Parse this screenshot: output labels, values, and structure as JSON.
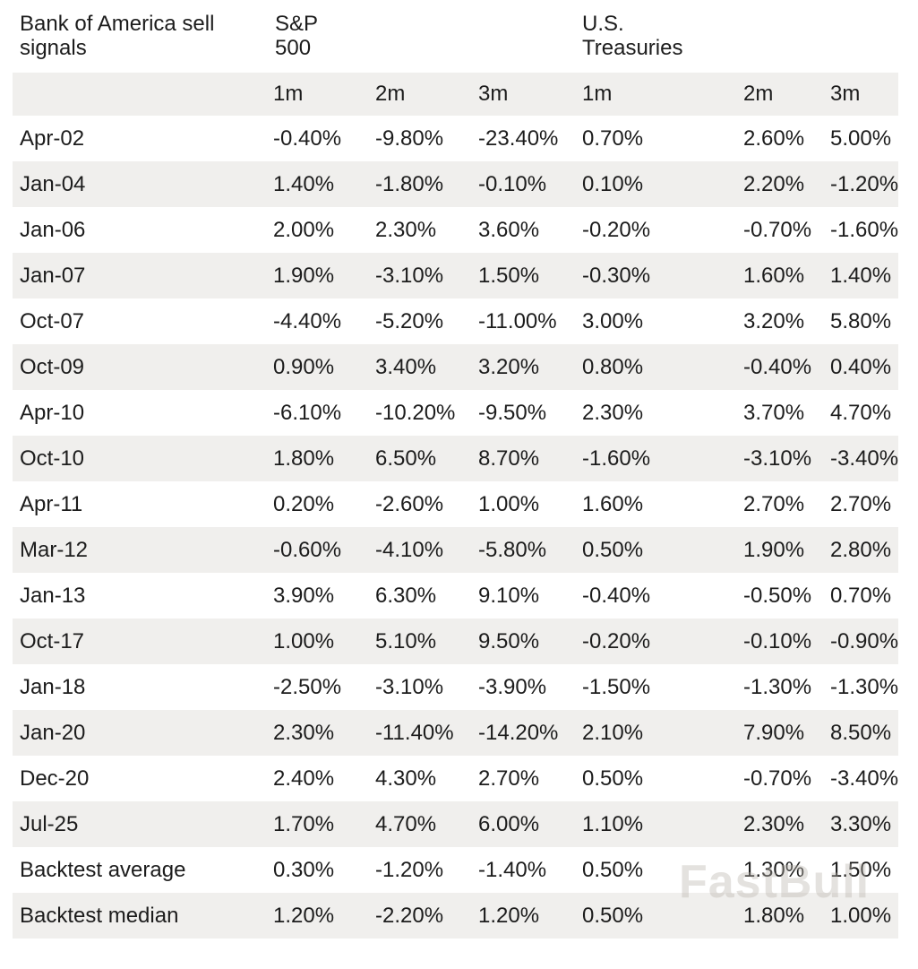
{
  "header": {
    "title": "Bank of America sell\nsignals",
    "sp500": "S&P\n500",
    "treasuries": "U.S.\nTreasuries"
  },
  "watermark": "FastBull",
  "colors": {
    "row_alt_background": "#f0efed",
    "text": "#1c1c1c",
    "watermark": "#b8b2ab"
  },
  "chart_data": {
    "type": "table",
    "title": "Bank of America sell signals",
    "column_groups": [
      "S&P 500",
      "U.S. Treasuries"
    ],
    "columns": [
      "1m",
      "2m",
      "3m",
      "1m",
      "2m",
      "3m"
    ],
    "rows": [
      {
        "label": "Apr-02",
        "values": [
          "-0.40%",
          "-9.80%",
          "-23.40%",
          "0.70%",
          "2.60%",
          "5.00%"
        ]
      },
      {
        "label": "Jan-04",
        "values": [
          "1.40%",
          "-1.80%",
          "-0.10%",
          "0.10%",
          "2.20%",
          "-1.20%"
        ]
      },
      {
        "label": "Jan-06",
        "values": [
          "2.00%",
          "2.30%",
          "3.60%",
          "-0.20%",
          "-0.70%",
          "-1.60%"
        ]
      },
      {
        "label": "Jan-07",
        "values": [
          "1.90%",
          "-3.10%",
          "1.50%",
          "-0.30%",
          "1.60%",
          "1.40%"
        ]
      },
      {
        "label": "Oct-07",
        "values": [
          "-4.40%",
          "-5.20%",
          "-11.00%",
          "3.00%",
          "3.20%",
          "5.80%"
        ]
      },
      {
        "label": "Oct-09",
        "values": [
          "0.90%",
          "3.40%",
          "3.20%",
          "0.80%",
          "-0.40%",
          "0.40%"
        ]
      },
      {
        "label": "Apr-10",
        "values": [
          "-6.10%",
          "-10.20%",
          "-9.50%",
          "2.30%",
          "3.70%",
          "4.70%"
        ]
      },
      {
        "label": "Oct-10",
        "values": [
          "1.80%",
          "6.50%",
          "8.70%",
          "-1.60%",
          "-3.10%",
          "-3.40%"
        ]
      },
      {
        "label": "Apr-11",
        "values": [
          "0.20%",
          "-2.60%",
          "1.00%",
          "1.60%",
          "2.70%",
          "2.70%"
        ]
      },
      {
        "label": "Mar-12",
        "values": [
          "-0.60%",
          "-4.10%",
          "-5.80%",
          "0.50%",
          "1.90%",
          "2.80%"
        ]
      },
      {
        "label": "Jan-13",
        "values": [
          "3.90%",
          "6.30%",
          "9.10%",
          "-0.40%",
          "-0.50%",
          "0.70%"
        ]
      },
      {
        "label": "Oct-17",
        "values": [
          "1.00%",
          "5.10%",
          "9.50%",
          "-0.20%",
          "-0.10%",
          "-0.90%"
        ]
      },
      {
        "label": "Jan-18",
        "values": [
          "-2.50%",
          "-3.10%",
          "-3.90%",
          "-1.50%",
          "-1.30%",
          "-1.30%"
        ]
      },
      {
        "label": "Jan-20",
        "values": [
          "2.30%",
          "-11.40%",
          "-14.20%",
          "2.10%",
          "7.90%",
          "8.50%"
        ]
      },
      {
        "label": "Dec-20",
        "values": [
          "2.40%",
          "4.30%",
          "2.70%",
          "0.50%",
          "-0.70%",
          "-3.40%"
        ]
      },
      {
        "label": "Jul-25",
        "values": [
          "1.70%",
          "4.70%",
          "6.00%",
          "1.10%",
          "2.30%",
          "3.30%"
        ]
      },
      {
        "label": "Backtest average",
        "values": [
          "0.30%",
          "-1.20%",
          "-1.40%",
          "0.50%",
          "1.30%",
          "1.50%"
        ]
      },
      {
        "label": "Backtest median",
        "values": [
          "1.20%",
          "-2.20%",
          "1.20%",
          "0.50%",
          "1.80%",
          "1.00%"
        ]
      }
    ]
  }
}
